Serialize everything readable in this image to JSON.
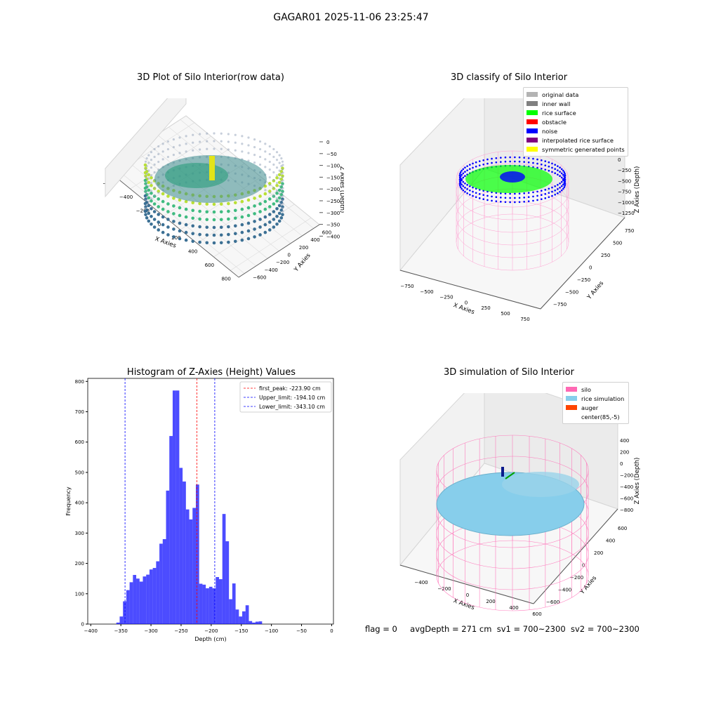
{
  "suptitle": "GAGAR01 2025-11-06 23:25:47",
  "panels": {
    "raw": {
      "title": "3D Plot of Silo Interior(row data)",
      "xlabel": "X Axies",
      "ylabel": "Y Axies",
      "zlabel": "Z Axies (Depth)",
      "xticks": [
        "−600",
        "−400",
        "−200",
        "0",
        "200",
        "400",
        "600",
        "800"
      ],
      "yticks": [
        "−600",
        "−400",
        "−200",
        "0",
        "200",
        "400",
        "600"
      ],
      "zticks": [
        "0",
        "−50",
        "−100",
        "−150",
        "−200",
        "−250",
        "−300",
        "−350",
        "−400"
      ]
    },
    "classify": {
      "title": "3D classify of Silo Interior",
      "xlabel": "X Axies",
      "ylabel": "Y Axies",
      "zlabel": "Z Axies (Depth)",
      "xticks": [
        "−750",
        "−500",
        "−250",
        "0",
        "250",
        "500",
        "750"
      ],
      "yticks": [
        "−750",
        "−500",
        "−250",
        "0",
        "250",
        "500",
        "750"
      ],
      "zticks": [
        "0",
        "−250",
        "−500",
        "−750",
        "−1000",
        "−1250"
      ],
      "legend": [
        {
          "label": "original data",
          "color": "#b3b3b3"
        },
        {
          "label": "inner wall",
          "color": "#808080"
        },
        {
          "label": "rice surface",
          "color": "#00ff00"
        },
        {
          "label": "obstacle",
          "color": "#ff0000"
        },
        {
          "label": "noise",
          "color": "#0000ff"
        },
        {
          "label": "interpolated rice surface",
          "color": "#800080"
        },
        {
          "label": "symmetric generated points",
          "color": "#ffff00"
        }
      ]
    },
    "simulation": {
      "title": "3D simulation of Silo Interior",
      "xlabel": "X Axies",
      "ylabel": "Y Axies",
      "zlabel": "Z Axies (Depth)",
      "xticks": [
        "−400",
        "−200",
        "0",
        "200",
        "400",
        "600"
      ],
      "yticks": [
        "−600",
        "−400",
        "−200",
        "0",
        "200",
        "400",
        "600"
      ],
      "zticks": [
        "400",
        "200",
        "0",
        "−200",
        "−400",
        "−600",
        "−800"
      ],
      "legend": [
        {
          "label": "silo",
          "color": "#ff69b4"
        },
        {
          "label": "rice simulation",
          "color": "#87ceeb"
        },
        {
          "label": "auger",
          "color": "#ff4500"
        },
        {
          "label": "center(85,-5)",
          "color": "#ffffff"
        }
      ]
    }
  },
  "status": {
    "flag": "flag = 0",
    "avg": "avgDepth = 271 cm",
    "sv1": "sv1 = 700~2300",
    "sv2": "sv2 = 700~2300"
  },
  "chart_data": {
    "type": "bar",
    "title": "Histogram of Z-Axies (Height) Values",
    "xlabel": "Depth (cm)",
    "ylabel": "Frequency",
    "xlim": [
      -405,
      3
    ],
    "ylim": [
      0,
      810
    ],
    "xticks": [
      -400,
      -350,
      -300,
      -250,
      -200,
      -150,
      -100,
      -50,
      0
    ],
    "yticks": [
      0,
      100,
      200,
      300,
      400,
      500,
      600,
      700,
      800
    ],
    "bar_color": "#0000ff",
    "bins": [
      {
        "x0": -357.5,
        "x1": -352.0,
        "value": 5
      },
      {
        "x0": -352.0,
        "x1": -346.5,
        "value": 25
      },
      {
        "x0": -346.5,
        "x1": -341.0,
        "value": 75
      },
      {
        "x0": -341.0,
        "x1": -335.5,
        "value": 112
      },
      {
        "x0": -335.5,
        "x1": -330.0,
        "value": 138
      },
      {
        "x0": -330.0,
        "x1": -324.5,
        "value": 162
      },
      {
        "x0": -324.5,
        "x1": -319.0,
        "value": 150
      },
      {
        "x0": -319.0,
        "x1": -313.5,
        "value": 140
      },
      {
        "x0": -313.5,
        "x1": -308.0,
        "value": 157
      },
      {
        "x0": -308.0,
        "x1": -302.5,
        "value": 163
      },
      {
        "x0": -302.5,
        "x1": -297.0,
        "value": 180
      },
      {
        "x0": -297.0,
        "x1": -291.5,
        "value": 185
      },
      {
        "x0": -291.5,
        "x1": -286.0,
        "value": 207
      },
      {
        "x0": -286.0,
        "x1": -280.5,
        "value": 265
      },
      {
        "x0": -280.5,
        "x1": -275.0,
        "value": 280
      },
      {
        "x0": -275.0,
        "x1": -269.5,
        "value": 440
      },
      {
        "x0": -269.5,
        "x1": -264.0,
        "value": 620
      },
      {
        "x0": -264.0,
        "x1": -258.5,
        "value": 770
      },
      {
        "x0": -258.5,
        "x1": -253.0,
        "value": 770
      },
      {
        "x0": -253.0,
        "x1": -247.5,
        "value": 515
      },
      {
        "x0": -247.5,
        "x1": -242.0,
        "value": 470
      },
      {
        "x0": -242.0,
        "x1": -236.5,
        "value": 378
      },
      {
        "x0": -236.5,
        "x1": -231.0,
        "value": 345
      },
      {
        "x0": -231.0,
        "x1": -225.5,
        "value": 383
      },
      {
        "x0": -225.5,
        "x1": -220.0,
        "value": 460
      },
      {
        "x0": -220.0,
        "x1": -214.5,
        "value": 133
      },
      {
        "x0": -214.5,
        "x1": -209.0,
        "value": 130
      },
      {
        "x0": -209.0,
        "x1": -203.5,
        "value": 118
      },
      {
        "x0": -203.5,
        "x1": -198.0,
        "value": 123
      },
      {
        "x0": -198.0,
        "x1": -192.5,
        "value": 118
      },
      {
        "x0": -192.5,
        "x1": -187.0,
        "value": 155
      },
      {
        "x0": -187.0,
        "x1": -181.5,
        "value": 148
      },
      {
        "x0": -181.5,
        "x1": -176.0,
        "value": 363
      },
      {
        "x0": -176.0,
        "x1": -170.5,
        "value": 273
      },
      {
        "x0": -170.5,
        "x1": -165.0,
        "value": 82
      },
      {
        "x0": -165.0,
        "x1": -159.5,
        "value": 134
      },
      {
        "x0": -159.5,
        "x1": -154.0,
        "value": 48
      },
      {
        "x0": -154.0,
        "x1": -148.5,
        "value": 25
      },
      {
        "x0": -148.5,
        "x1": -143.0,
        "value": 42
      },
      {
        "x0": -143.0,
        "x1": -137.5,
        "value": 62
      },
      {
        "x0": -137.5,
        "x1": -132.0,
        "value": 10
      },
      {
        "x0": -132.0,
        "x1": -126.5,
        "value": 5
      },
      {
        "x0": -126.5,
        "x1": -121.0,
        "value": 8
      },
      {
        "x0": -121.0,
        "x1": -115.5,
        "value": 9
      }
    ],
    "vlines": [
      {
        "label": "first_peak: -223.90 cm",
        "x": -223.9,
        "color": "#ff0000"
      },
      {
        "label": "Upper_limit: -194.10 cm",
        "x": -194.1,
        "color": "#0000ff"
      },
      {
        "label": "Lower_limit: -343.10 cm",
        "x": -343.1,
        "color": "#0000ff"
      }
    ]
  }
}
